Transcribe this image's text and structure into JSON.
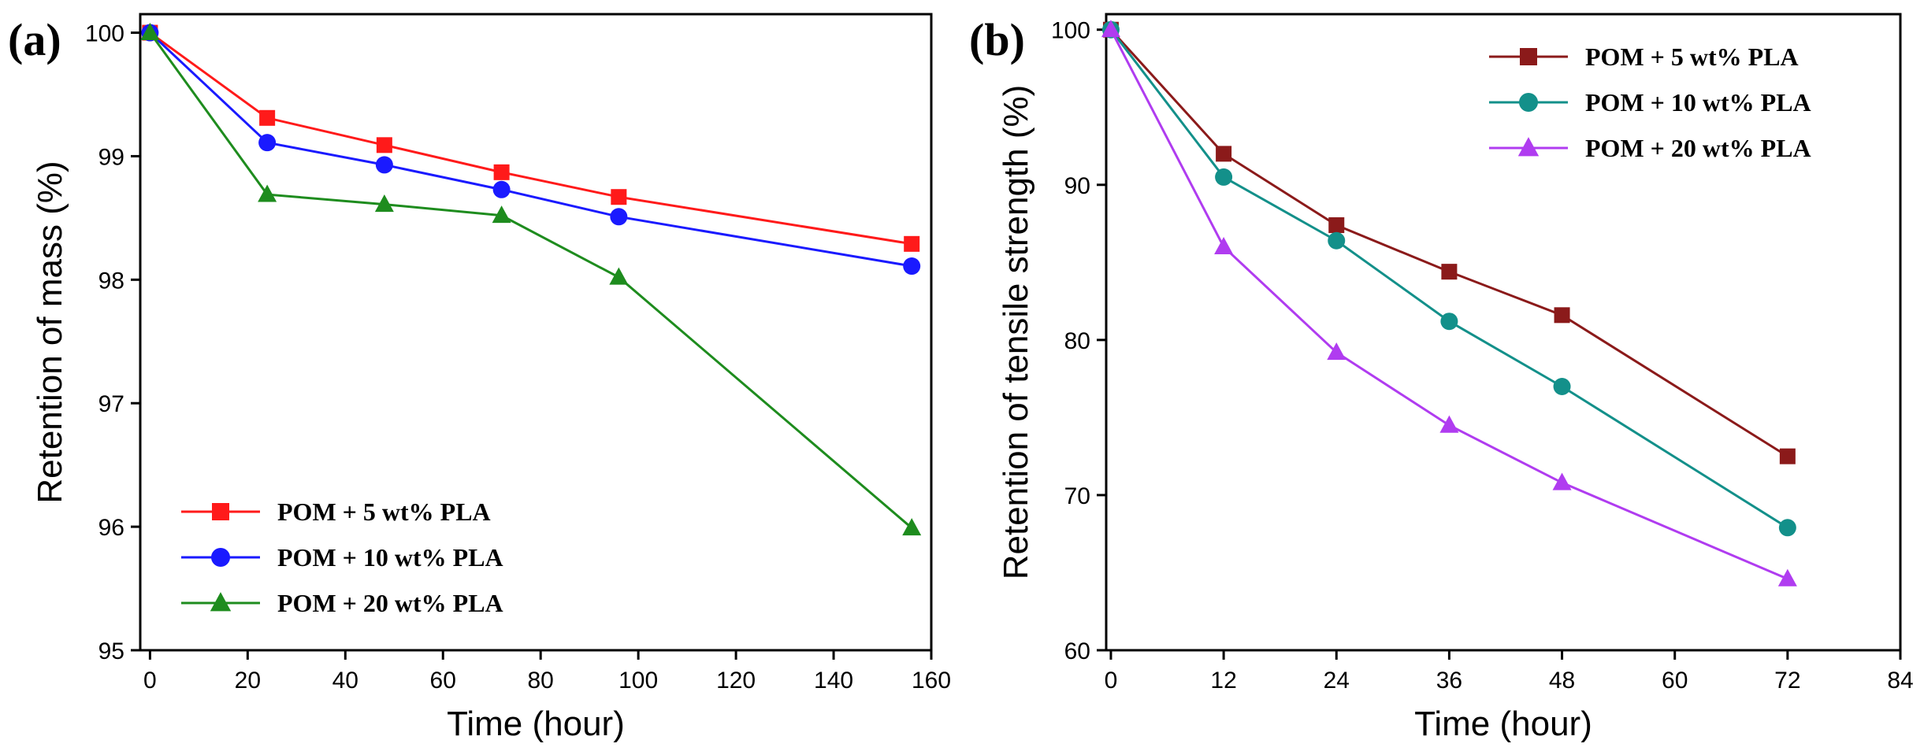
{
  "chart_data": [
    {
      "type": "line",
      "panel_label": "(a)",
      "title": "",
      "xlabel": "Time (hour)",
      "ylabel": "Retention of mass (%)",
      "xlim": [
        -2,
        160
      ],
      "ylim": [
        95,
        100.15
      ],
      "xticks": [
        0,
        20,
        40,
        60,
        80,
        100,
        120,
        140,
        160
      ],
      "yticks": [
        95,
        96,
        97,
        98,
        99,
        100
      ],
      "legend_position": "bottom-left",
      "x": [
        0,
        24,
        48,
        72,
        96,
        156
      ],
      "series": [
        {
          "name": "POM + 5 wt% PLA",
          "color": "#ff1a1a",
          "marker": "square",
          "values": [
            100,
            99.31,
            99.09,
            98.87,
            98.67,
            98.29
          ]
        },
        {
          "name": "POM + 10 wt% PLA",
          "color": "#1a1aff",
          "marker": "circle",
          "values": [
            100,
            99.11,
            98.93,
            98.73,
            98.51,
            98.11
          ]
        },
        {
          "name": "POM + 20 wt% PLA",
          "color": "#1e8c1e",
          "marker": "triangle",
          "values": [
            100,
            98.69,
            98.61,
            98.52,
            98.02,
            95.99
          ]
        }
      ]
    },
    {
      "type": "line",
      "panel_label": "(b)",
      "title": "",
      "xlabel": "Time (hour)",
      "ylabel": "Retention of tensile strength (%)",
      "xlim": [
        -0.5,
        84
      ],
      "ylim": [
        60,
        101
      ],
      "xticks": [
        0,
        12,
        24,
        36,
        48,
        60,
        72,
        84
      ],
      "yticks": [
        60,
        70,
        80,
        90,
        100
      ],
      "legend_position": "top-right",
      "x": [
        0,
        12,
        24,
        36,
        48,
        72
      ],
      "series": [
        {
          "name": "POM + 5 wt% PLA",
          "color": "#8b1a1a",
          "marker": "square",
          "values": [
            100,
            92,
            87.4,
            84.4,
            81.6,
            72.5
          ]
        },
        {
          "name": "POM + 10 wt% PLA",
          "color": "#13908a",
          "marker": "circle",
          "values": [
            100,
            90.5,
            86.4,
            81.2,
            77,
            67.9
          ]
        },
        {
          "name": "POM + 20 wt% PLA",
          "color": "#b03cf0",
          "marker": "triangle",
          "values": [
            100,
            86,
            79.2,
            74.5,
            70.8,
            64.6
          ]
        }
      ]
    }
  ]
}
